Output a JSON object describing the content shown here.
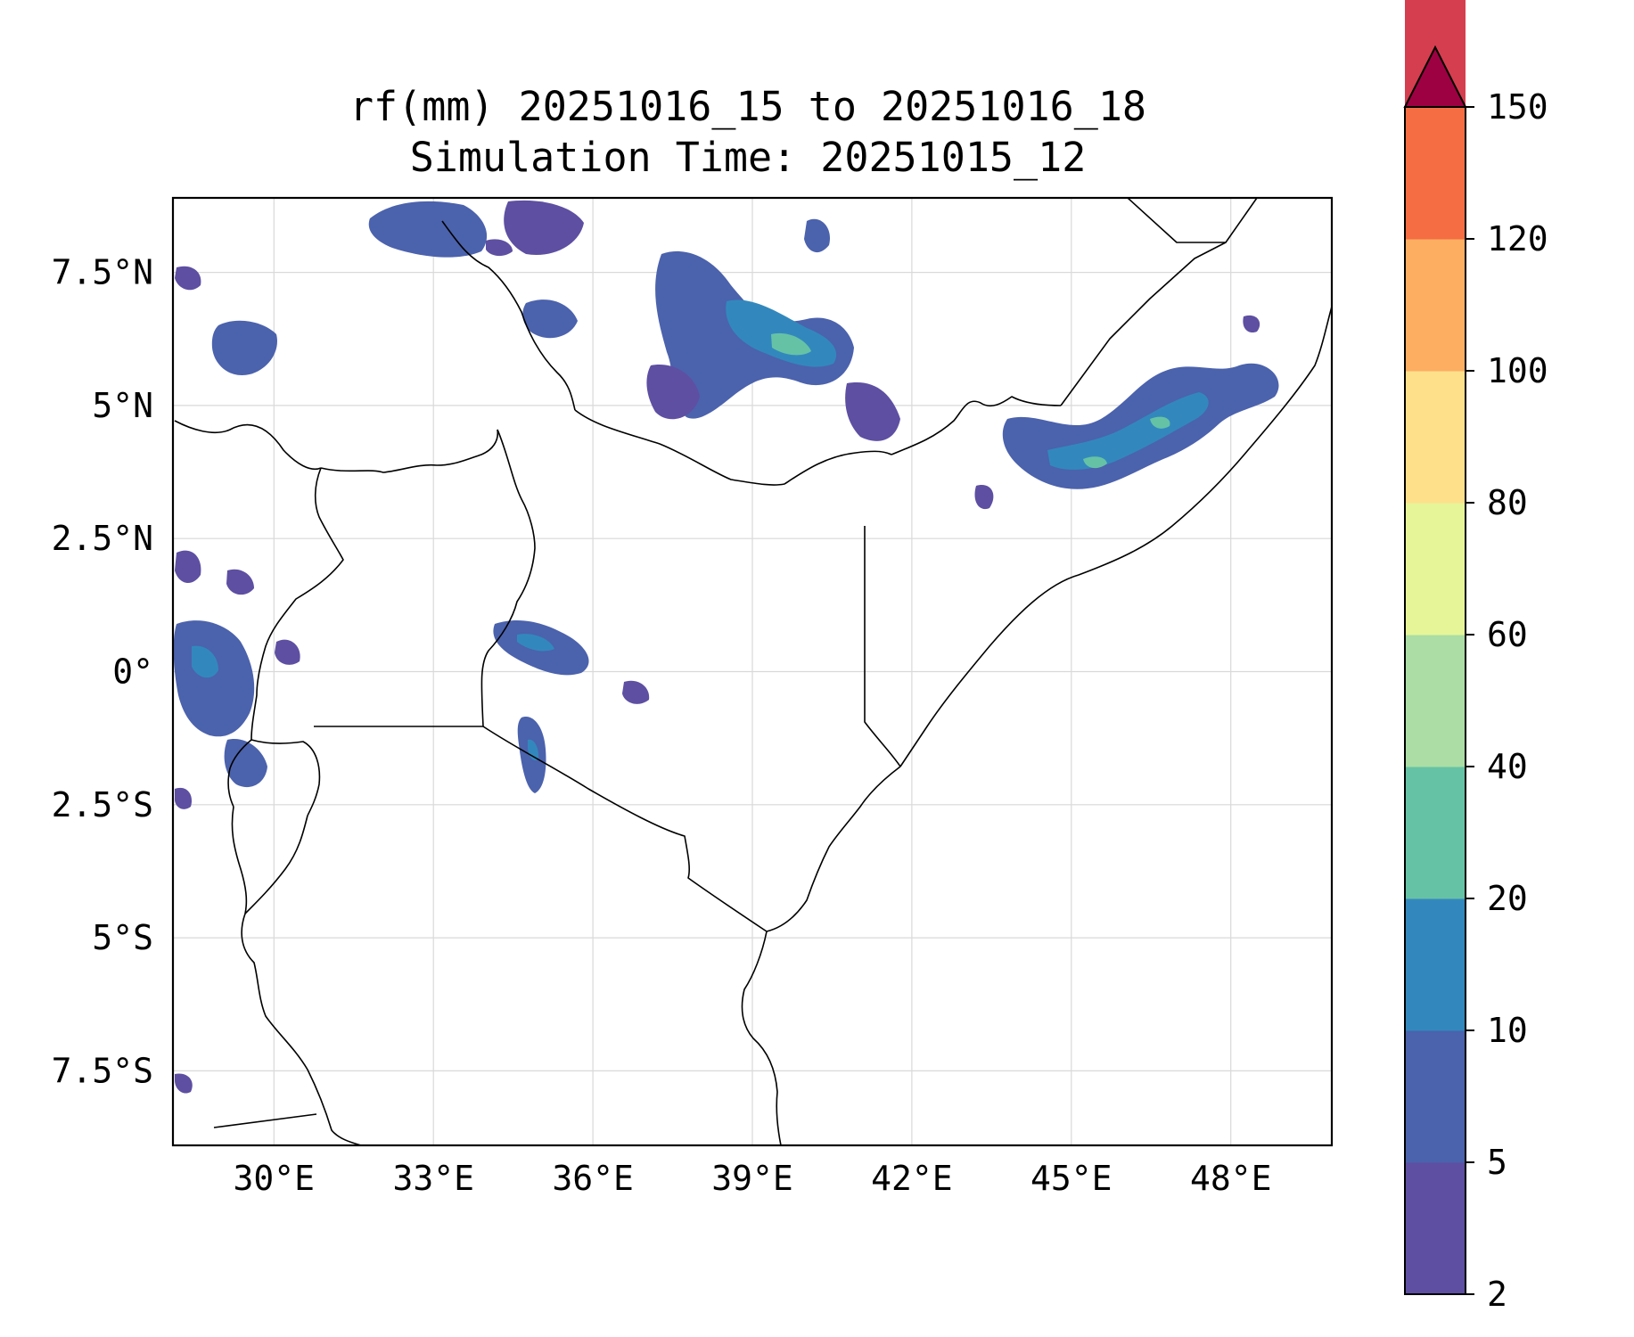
{
  "title": {
    "line1": "rf(mm) 20251016_15 to 20251016_18",
    "line2": "Simulation Time: 20251015_12"
  },
  "map": {
    "lon_range": [
      28.1,
      49.9
    ],
    "lat_range": [
      -8.9,
      8.9
    ],
    "x_ticks": [
      {
        "value": 30,
        "label": "30°E"
      },
      {
        "value": 33,
        "label": "33°E"
      },
      {
        "value": 36,
        "label": "36°E"
      },
      {
        "value": 39,
        "label": "39°E"
      },
      {
        "value": 42,
        "label": "42°E"
      },
      {
        "value": 45,
        "label": "45°E"
      },
      {
        "value": 48,
        "label": "48°E"
      }
    ],
    "y_ticks": [
      {
        "value": 7.5,
        "label": "7.5°N"
      },
      {
        "value": 5,
        "label": "5°N"
      },
      {
        "value": 2.5,
        "label": "2.5°N"
      },
      {
        "value": 0,
        "label": "0°"
      },
      {
        "value": -2.5,
        "label": "2.5°S"
      },
      {
        "value": -5,
        "label": "5°S"
      },
      {
        "value": -7.5,
        "label": "7.5°S"
      }
    ]
  },
  "colorbar": {
    "levels": [
      {
        "label": "2",
        "value": 2
      },
      {
        "label": "5",
        "value": 5
      },
      {
        "label": "10",
        "value": 10
      },
      {
        "label": "20",
        "value": 20
      },
      {
        "label": "40",
        "value": 40
      },
      {
        "label": "60",
        "value": 60
      },
      {
        "label": "80",
        "value": 80
      },
      {
        "label": "100",
        "value": 100
      },
      {
        "label": "120",
        "value": 120
      },
      {
        "label": "150",
        "value": 150
      }
    ],
    "colors": [
      "#5e4fa2",
      "#4b62ad",
      "#3288bd",
      "#66c2a5",
      "#abdda4",
      "#e6f598",
      "#fee08b",
      "#fdae61",
      "#f46d43",
      "#d53e4f"
    ],
    "extend_color": "#9e0142"
  }
}
